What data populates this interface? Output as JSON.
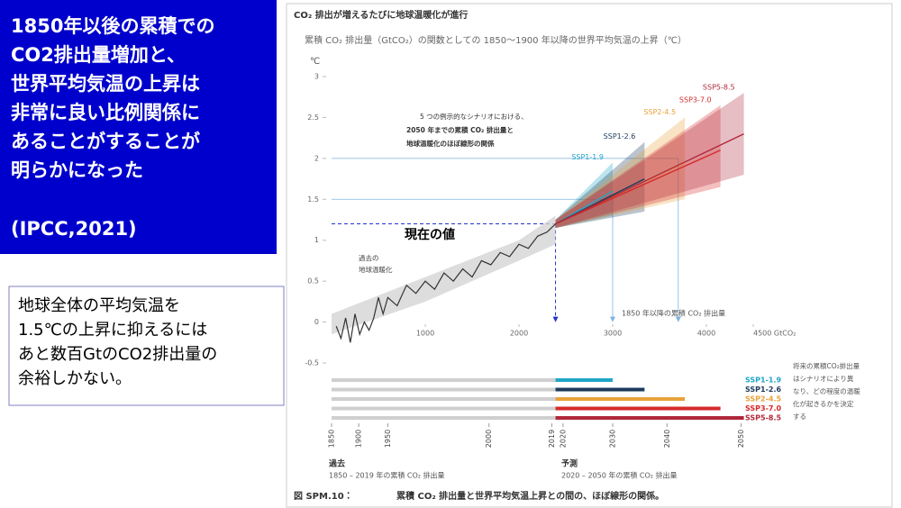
{
  "slide": {
    "summary_lines": [
      "1850年以後の累積での",
      "CO2排出量増加と、",
      "世界平均気温の上昇は",
      "非常に良い比例関係に",
      "あることがすることが",
      "明らかになった"
    ],
    "citation": "(IPCC,2021)",
    "note_lines": [
      "地球全体の平均気温を",
      "1.5℃の上昇に抑えるには",
      "あと数百GtのCO2排出量の",
      "余裕しかない。"
    ]
  },
  "figure": {
    "header": "CO₂ 排出が増えるたびに地球温暖化が進行",
    "caption_label": "図 SPM.10：",
    "caption": "累積 CO₂ 排出量と世界平均気温上昇との間の、ほぼ線形の関係。"
  },
  "chart_data": {
    "type": "line",
    "title": "累積 CO₂ 排出量（GtCO₂）の関数としての 1850～1900 年以降の世界平均気温の上昇（℃）",
    "y_label": "℃",
    "x_label": "1850 年以降の累積 CO₂ 排出量",
    "xlim": [
      0,
      4500
    ],
    "ylim": [
      -0.5,
      3
    ],
    "xticks": [
      1000,
      2000,
      3000,
      4000,
      {
        "value": 4500,
        "label": "4500 GtCO₂"
      }
    ],
    "yticks": [
      -0.5,
      0,
      0.5,
      1,
      1.5,
      2,
      2.5,
      3
    ],
    "grid": false,
    "annotations": {
      "scenario_note": [
        "5 つの例示的なシナリオにおける、",
        "2050 年までの累積 CO₂ 排出量と",
        "地球温暖化のほぼ線形の関係"
      ],
      "past_note": [
        "過去の",
        "地球温暖化"
      ]
    },
    "current_value": {
      "label": "現在の値",
      "x": 2390,
      "y": 1.2
    },
    "reference_lines": {
      "levels": [
        1.5,
        2
      ],
      "x": [
        3000,
        3700
      ]
    },
    "historical_band": {
      "x": [
        0,
        1000,
        2000,
        2390
      ],
      "low": [
        -0.15,
        0.25,
        0.75,
        0.95
      ],
      "high": [
        0.1,
        0.55,
        1.0,
        1.3
      ]
    },
    "series": [
      {
        "name": "過去",
        "color": "#333333",
        "x": [
          50,
          100,
          150,
          200,
          250,
          300,
          350,
          400,
          450,
          500,
          550,
          600,
          700,
          800,
          900,
          1000,
          1100,
          1200,
          1300,
          1400,
          1500,
          1600,
          1700,
          1800,
          1900,
          2000,
          2100,
          2200,
          2300,
          2390
        ],
        "values": [
          -0.05,
          -0.2,
          0.05,
          -0.25,
          0.1,
          -0.15,
          0.0,
          -0.1,
          0.05,
          0.3,
          0.1,
          0.3,
          0.2,
          0.45,
          0.35,
          0.5,
          0.4,
          0.6,
          0.5,
          0.65,
          0.55,
          0.75,
          0.7,
          0.85,
          0.8,
          0.95,
          0.9,
          1.05,
          1.1,
          1.2
        ]
      },
      {
        "name": "SSP1-1.9",
        "color": "#1fa6c8",
        "x": [
          2390,
          3000
        ],
        "values": [
          1.2,
          1.6
        ],
        "low": [
          1.15,
          1.3
        ],
        "high": [
          1.25,
          1.95
        ]
      },
      {
        "name": "SSP1-2.6",
        "color": "#1d3a5c",
        "x": [
          2390,
          3340
        ],
        "values": [
          1.2,
          1.75
        ],
        "low": [
          1.15,
          1.35
        ],
        "high": [
          1.25,
          2.2
        ]
      },
      {
        "name": "SSP2-4.5",
        "color": "#e8a23a",
        "x": [
          2390,
          3770
        ],
        "values": [
          1.2,
          1.95
        ],
        "low": [
          1.15,
          1.5
        ],
        "high": [
          1.25,
          2.5
        ]
      },
      {
        "name": "SSP3-7.0",
        "color": "#d62a2a",
        "x": [
          2390,
          4150
        ],
        "values": [
          1.2,
          2.1
        ],
        "low": [
          1.15,
          1.65
        ],
        "high": [
          1.25,
          2.65
        ]
      },
      {
        "name": "SSP5-8.5",
        "color": "#b0283a",
        "x": [
          2390,
          4400
        ],
        "values": [
          1.2,
          2.3
        ],
        "low": [
          1.15,
          1.8
        ],
        "high": [
          1.25,
          2.8
        ]
      }
    ],
    "timeline_ticks": [
      {
        "value": 0,
        "label": "1850"
      },
      {
        "value": 290,
        "label": "1900"
      },
      {
        "value": 600,
        "label": "1950"
      },
      {
        "value": 1680,
        "label": "2000"
      },
      {
        "value": 2350,
        "label": "2019"
      },
      {
        "value": 2470,
        "label": "2020"
      },
      {
        "value": 3000,
        "label": "2030"
      },
      {
        "value": 3580,
        "label": "2040"
      },
      {
        "value": 4370,
        "label": "2050"
      }
    ],
    "past_label": "過去",
    "past_range": "1850 – 2019 年の累積 CO₂ 排出量",
    "future_label": "予測",
    "future_range": "2020 – 2050 年の累積 CO₂ 排出量",
    "bars_note": [
      "将来の累積CO₂排出量",
      "はシナリオにより異",
      "なり、どの程度の温暖",
      "化が起きるかを決定",
      "する"
    ]
  }
}
